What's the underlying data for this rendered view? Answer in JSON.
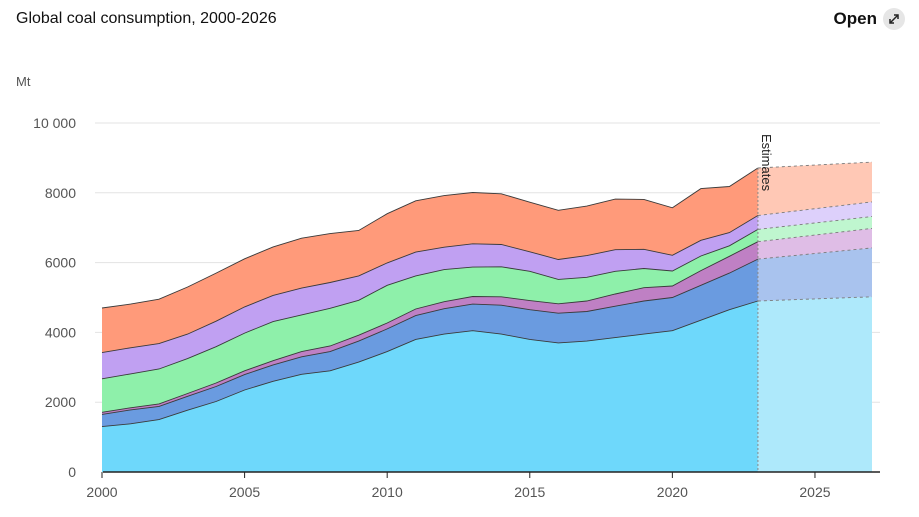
{
  "header": {
    "title": "Global coal consumption, 2000-2026",
    "open_label": "Open"
  },
  "icons": {
    "open": "expand-arrows-icon"
  },
  "chart_data": {
    "type": "area",
    "stacked": true,
    "title": "Global coal consumption, 2000-2026",
    "ylabel": "Mt",
    "ylim": [
      0,
      10000
    ],
    "xlim": [
      2000,
      2027
    ],
    "y_ticks": [
      0,
      2000,
      4000,
      6000,
      8000,
      10000
    ],
    "y_tick_labels": [
      "0",
      "2000",
      "4000",
      "6000",
      "8000",
      "10 000"
    ],
    "x_ticks": [
      2000,
      2005,
      2010,
      2015,
      2020,
      2025
    ],
    "x_tick_labels": [
      "2000",
      "2005",
      "2010",
      "2015",
      "2020",
      "2025"
    ],
    "grid": true,
    "annotation": "Estimates",
    "estimate_start": 2023,
    "x": [
      2000,
      2001,
      2002,
      2003,
      2004,
      2005,
      2006,
      2007,
      2008,
      2009,
      2010,
      2011,
      2012,
      2013,
      2014,
      2015,
      2016,
      2017,
      2018,
      2019,
      2020,
      2021,
      2022,
      2023,
      2027
    ],
    "series": [
      {
        "color": "#6ed8fb",
        "estimate_color": "#aee9fb",
        "values": [
          1300,
          1380,
          1500,
          1770,
          2020,
          2350,
          2600,
          2800,
          2900,
          3150,
          3450,
          3800,
          3950,
          4050,
          3950,
          3800,
          3700,
          3750,
          3850,
          3950,
          4050,
          4350,
          4650,
          4900,
          5020
        ]
      },
      {
        "color": "#6a9be0",
        "estimate_color": "#a9c3ee",
        "values": [
          350,
          400,
          380,
          400,
          430,
          440,
          470,
          500,
          550,
          600,
          650,
          680,
          730,
          760,
          830,
          850,
          850,
          850,
          900,
          950,
          950,
          1000,
          1050,
          1200,
          1400
        ]
      },
      {
        "color": "#bf80c4",
        "estimate_color": "#dfbde6",
        "values": [
          60,
          60,
          70,
          80,
          100,
          110,
          120,
          150,
          160,
          170,
          170,
          190,
          200,
          220,
          240,
          260,
          270,
          300,
          350,
          380,
          330,
          420,
          480,
          500,
          560
        ]
      },
      {
        "color": "#8ef0aa",
        "estimate_color": "#bff6cf",
        "values": [
          960,
          970,
          1000,
          1000,
          1040,
          1080,
          1120,
          1050,
          1080,
          1000,
          1080,
          950,
          920,
          840,
          860,
          840,
          700,
          680,
          650,
          550,
          430,
          420,
          300,
          350,
          340
        ]
      },
      {
        "color": "#c0a0f2",
        "estimate_color": "#ddd0fb",
        "values": [
          750,
          750,
          730,
          700,
          730,
          750,
          750,
          770,
          740,
          700,
          640,
          680,
          640,
          670,
          640,
          560,
          570,
          620,
          620,
          550,
          450,
          450,
          380,
          400,
          420
        ]
      },
      {
        "color": "#ff9a7a",
        "estimate_color": "#ffc8b5",
        "values": [
          1280,
          1250,
          1270,
          1350,
          1380,
          1380,
          1390,
          1430,
          1400,
          1300,
          1410,
          1470,
          1480,
          1470,
          1450,
          1420,
          1410,
          1420,
          1450,
          1430,
          1360,
          1480,
          1320,
          1360,
          1140
        ]
      }
    ]
  }
}
